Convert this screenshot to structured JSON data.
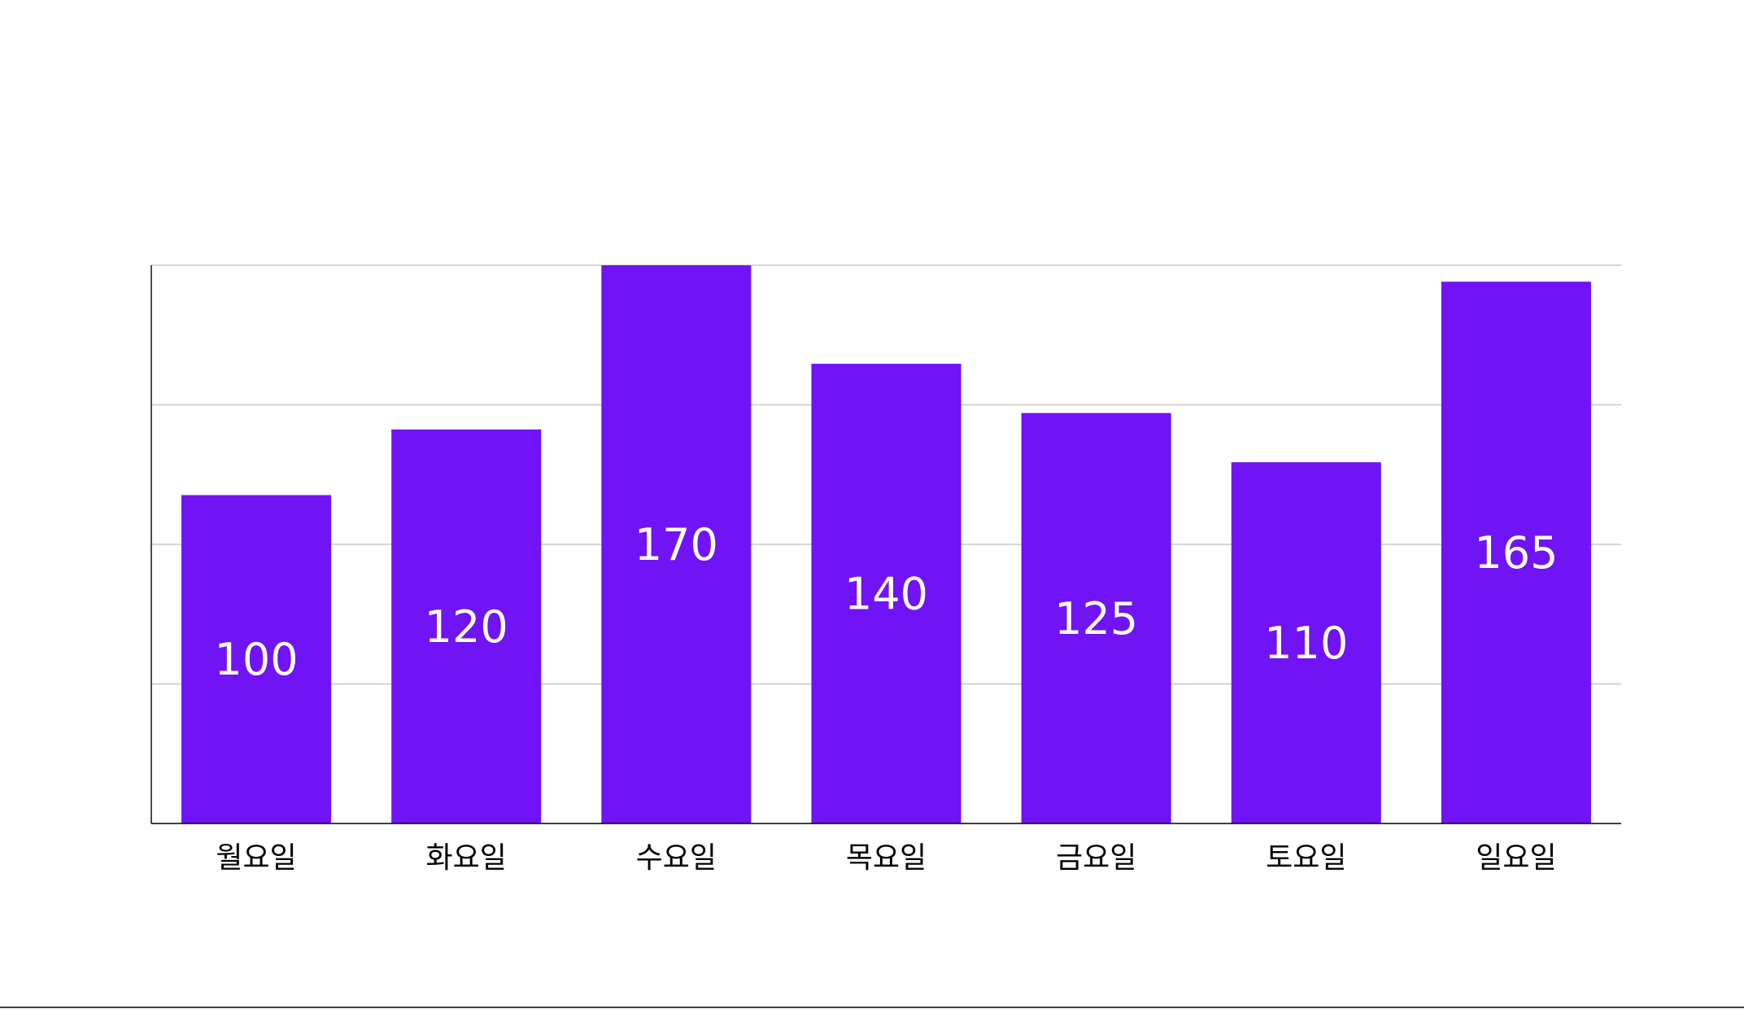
{
  "chart_data": {
    "type": "bar",
    "categories": [
      "월요일",
      "화요일",
      "수요일",
      "목요일",
      "금요일",
      "토요일",
      "일요일"
    ],
    "values": [
      100,
      120,
      170,
      140,
      125,
      110,
      165
    ],
    "ylim": [
      0,
      170
    ],
    "grid": true,
    "legend": false,
    "data_labels": true,
    "colors": {
      "bar": "#7013f5",
      "bar_label": "#ffffff",
      "grid": "#c8c8c8",
      "axis": "#000000"
    }
  }
}
